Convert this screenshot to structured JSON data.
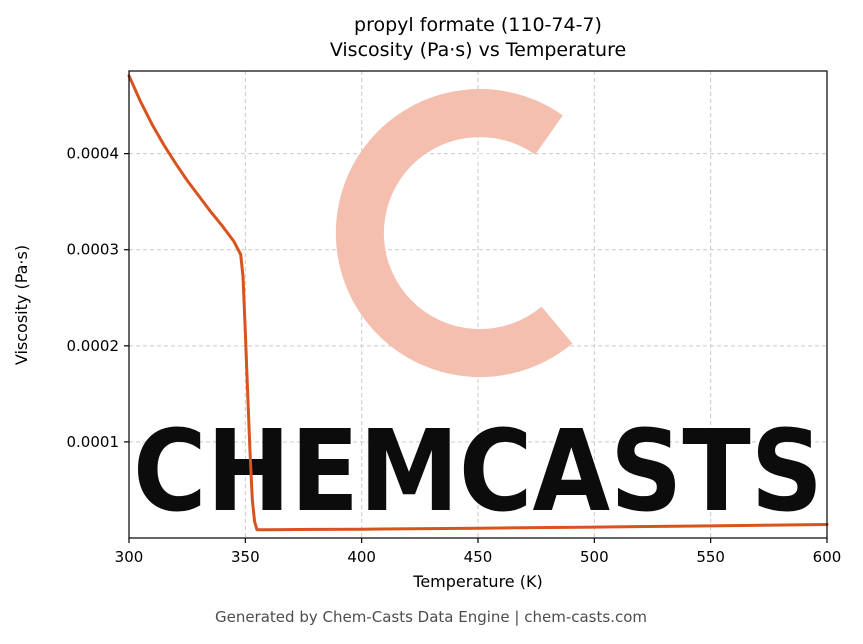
{
  "header": {
    "title_line1": "propyl formate (110-74-7)",
    "title_line2": "Viscosity (Pa·s) vs Temperature"
  },
  "footer": {
    "text": "Generated by Chem-Casts Data Engine | chem-casts.com"
  },
  "watermark": {
    "text": "CHEMCASTS",
    "color": "#f4bfae",
    "logo": "chemcasts-c-logo"
  },
  "chart_data": {
    "type": "line",
    "title": "propyl formate (110-74-7) Viscosity (Pa·s) vs Temperature",
    "xlabel": "Temperature (K)",
    "ylabel": "Viscosity (Pa·s)",
    "xlim": [
      300,
      600
    ],
    "ylim": [
      0,
      0.000486
    ],
    "x_ticks": [
      300,
      350,
      400,
      450,
      500,
      550,
      600
    ],
    "x_tick_labels": [
      "300",
      "350",
      "400",
      "450",
      "500",
      "550",
      "600"
    ],
    "y_ticks": [
      0.0001,
      0.0002,
      0.0003,
      0.0004
    ],
    "y_tick_labels": [
      "0.0001",
      "0.0002",
      "0.0003",
      "0.0004"
    ],
    "grid": true,
    "legend": "none",
    "line_color": "#d9531e",
    "line_width": 3,
    "series": [
      {
        "name": "viscosity",
        "x": [
          300,
          305,
          310,
          315,
          320,
          325,
          330,
          335,
          340,
          345,
          348,
          349,
          350,
          351,
          352,
          353,
          354,
          355,
          360,
          380,
          400,
          450,
          500,
          550,
          600
        ],
        "y": [
          0.000481,
          0.000454,
          0.00043,
          0.000409,
          0.00039,
          0.000372,
          0.000356,
          0.00034,
          0.000325,
          0.000309,
          0.000295,
          0.000272,
          0.000215,
          0.00015,
          9e-05,
          4e-05,
          1.7e-05,
          8.5e-06,
          8.6e-06,
          8.9e-06,
          9.2e-06,
          1.02e-05,
          1.13e-05,
          1.26e-05,
          1.4e-05
        ]
      }
    ]
  }
}
